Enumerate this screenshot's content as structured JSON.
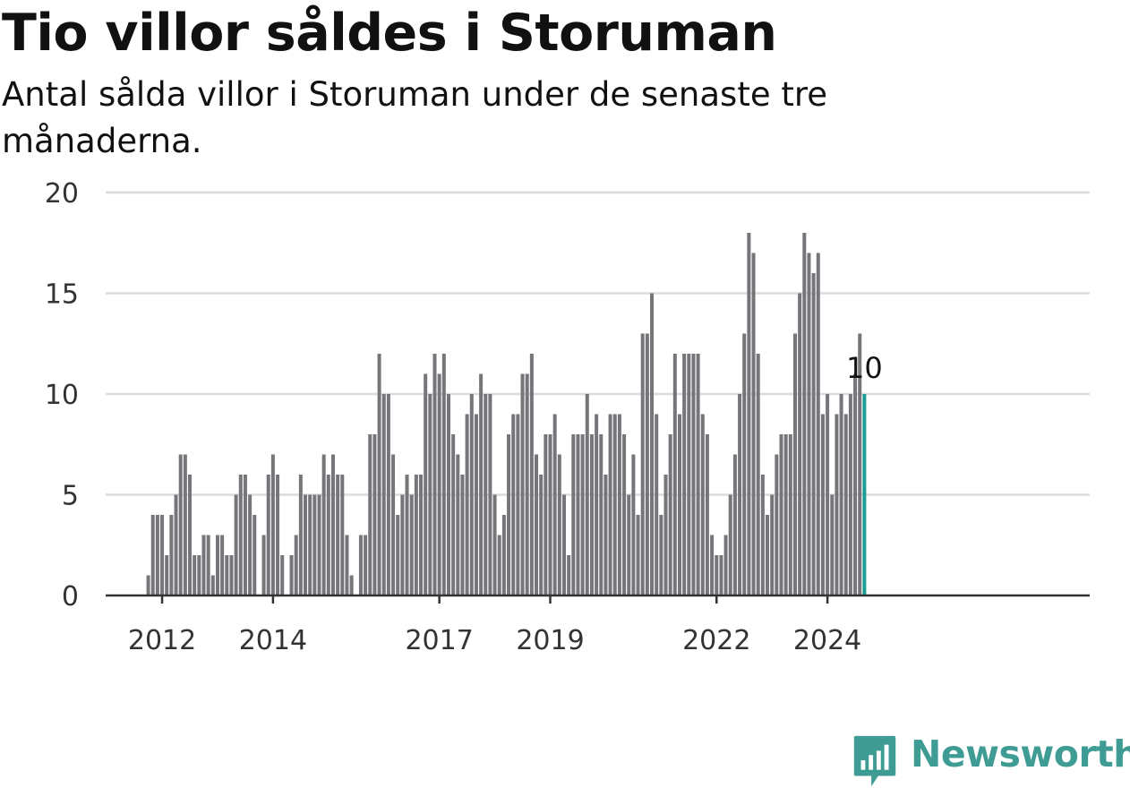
{
  "header": {
    "title": "Tio villor såldes i Storuman",
    "subtitle": "Antal sålda villor i Storuman under de senaste tre månaderna."
  },
  "brand": {
    "name": "Newsworthy",
    "color": "#3e9c94",
    "icon": "newsworthy-logo-icon"
  },
  "colors": {
    "bar": "#76757a",
    "highlight": "#1a9e94",
    "grid": "#dcdcdc",
    "axis": "#333333"
  },
  "chart_data": {
    "type": "bar",
    "title": "Tio villor såldes i Storuman",
    "subtitle": "Antal sålda villor i Storuman under de senaste tre månaderna.",
    "xlabel": "",
    "ylabel": "",
    "ylim": [
      0,
      20
    ],
    "yticks": [
      0,
      5,
      10,
      15,
      20
    ],
    "xticks": [
      "2012",
      "2014",
      "2017",
      "2019",
      "2022",
      "2024"
    ],
    "grid": true,
    "start": "2011-10",
    "values": [
      1,
      4,
      4,
      4,
      2,
      4,
      5,
      7,
      7,
      6,
      2,
      2,
      3,
      3,
      1,
      3,
      3,
      2,
      2,
      5,
      6,
      6,
      5,
      4,
      0,
      3,
      6,
      7,
      6,
      2,
      0,
      2,
      3,
      6,
      5,
      5,
      5,
      5,
      7,
      6,
      7,
      6,
      6,
      3,
      1,
      0,
      3,
      3,
      8,
      8,
      12,
      10,
      10,
      7,
      4,
      5,
      6,
      5,
      6,
      6,
      11,
      10,
      12,
      11,
      12,
      10,
      8,
      7,
      6,
      9,
      10,
      9,
      11,
      10,
      10,
      5,
      3,
      4,
      8,
      9,
      9,
      11,
      11,
      12,
      7,
      6,
      8,
      8,
      9,
      7,
      5,
      2,
      8,
      8,
      8,
      10,
      8,
      9,
      8,
      6,
      9,
      9,
      9,
      8,
      5,
      7,
      4,
      13,
      13,
      15,
      9,
      4,
      6,
      8,
      12,
      9,
      12,
      12,
      12,
      12,
      9,
      8,
      3,
      2,
      2,
      3,
      5,
      7,
      10,
      13,
      18,
      17,
      12,
      6,
      4,
      5,
      7,
      8,
      8,
      8,
      13,
      15,
      18,
      17,
      16,
      17,
      9,
      10,
      5,
      9,
      10,
      9,
      10,
      11,
      13,
      10
    ],
    "highlight": {
      "label": "10",
      "value": 10
    }
  }
}
